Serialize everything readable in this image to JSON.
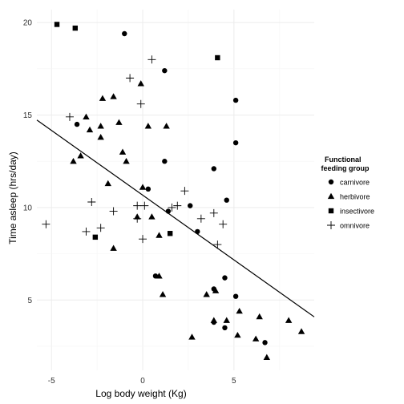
{
  "chart_data": {
    "type": "scatter",
    "xlabel": "Log body weight (Kg)",
    "ylabel": "Time asleep (hrs/day)",
    "xlim": [
      -5.8,
      9.4
    ],
    "ylim": [
      1.2,
      20.7
    ],
    "x_ticks": [
      -5,
      0,
      5
    ],
    "y_ticks": [
      5,
      10,
      15,
      20
    ],
    "x_tick_labels": [
      "-5",
      "0",
      "5"
    ],
    "y_tick_labels": [
      "5",
      "10",
      "15",
      "20"
    ],
    "grid": true,
    "legend": {
      "title_line1": "Functional",
      "title_line2": " feeding group",
      "placement": "right"
    },
    "series": [
      {
        "name": "carnivore",
        "marker": "circle",
        "points": [
          [
            -1.0,
            19.4
          ],
          [
            1.2,
            17.4
          ],
          [
            5.1,
            15.8
          ],
          [
            -3.6,
            14.5
          ],
          [
            5.1,
            13.5
          ],
          [
            1.2,
            12.5
          ],
          [
            3.9,
            12.1
          ],
          [
            0.3,
            11.0
          ],
          [
            4.6,
            10.4
          ],
          [
            2.6,
            10.1
          ],
          [
            1.4,
            9.8
          ],
          [
            3.0,
            8.7
          ],
          [
            0.7,
            6.3
          ],
          [
            4.5,
            6.2
          ],
          [
            3.9,
            5.6
          ],
          [
            5.1,
            5.2
          ],
          [
            3.9,
            3.8
          ],
          [
            4.5,
            3.5
          ],
          [
            6.7,
            2.7
          ]
        ]
      },
      {
        "name": "herbivore",
        "marker": "triangle",
        "points": [
          [
            -2.2,
            15.9
          ],
          [
            -1.6,
            16.0
          ],
          [
            -0.1,
            16.7
          ],
          [
            -3.1,
            14.9
          ],
          [
            -2.9,
            14.2
          ],
          [
            -2.3,
            14.4
          ],
          [
            -1.3,
            14.6
          ],
          [
            0.3,
            14.4
          ],
          [
            1.3,
            14.4
          ],
          [
            -2.3,
            13.8
          ],
          [
            -1.1,
            13.0
          ],
          [
            -3.4,
            12.8
          ],
          [
            -3.8,
            12.5
          ],
          [
            -0.9,
            12.5
          ],
          [
            -1.9,
            11.3
          ],
          [
            0.0,
            11.1
          ],
          [
            -0.3,
            9.5
          ],
          [
            0.5,
            9.5
          ],
          [
            0.9,
            8.5
          ],
          [
            -1.6,
            7.8
          ],
          [
            0.9,
            6.3
          ],
          [
            1.1,
            5.3
          ],
          [
            3.5,
            5.3
          ],
          [
            4.0,
            5.5
          ],
          [
            5.3,
            4.4
          ],
          [
            8.0,
            3.9
          ],
          [
            6.4,
            4.1
          ],
          [
            3.9,
            3.9
          ],
          [
            4.6,
            3.9
          ],
          [
            8.7,
            3.3
          ],
          [
            2.7,
            3.0
          ],
          [
            5.2,
            3.1
          ],
          [
            6.2,
            2.9
          ],
          [
            6.8,
            1.9
          ]
        ]
      },
      {
        "name": "insectivore",
        "marker": "square",
        "points": [
          [
            -4.7,
            19.9
          ],
          [
            -3.7,
            19.7
          ],
          [
            4.1,
            18.1
          ],
          [
            -2.6,
            8.4
          ],
          [
            1.5,
            8.6
          ]
        ]
      },
      {
        "name": "omnivore",
        "marker": "plus",
        "points": [
          [
            0.5,
            18.0
          ],
          [
            -0.7,
            17.0
          ],
          [
            -0.1,
            15.6
          ],
          [
            -4.0,
            14.9
          ],
          [
            2.3,
            10.9
          ],
          [
            0.1,
            10.1
          ],
          [
            -2.8,
            10.3
          ],
          [
            -0.3,
            10.1
          ],
          [
            1.6,
            10.0
          ],
          [
            1.9,
            10.1
          ],
          [
            -1.6,
            9.8
          ],
          [
            3.9,
            9.7
          ],
          [
            3.2,
            9.4
          ],
          [
            -5.3,
            9.1
          ],
          [
            4.4,
            9.1
          ],
          [
            -2.3,
            8.9
          ],
          [
            -3.1,
            8.7
          ],
          [
            -0.3,
            9.4
          ],
          [
            0.0,
            8.3
          ],
          [
            4.1,
            8.0
          ]
        ]
      }
    ],
    "fit_line": {
      "intercept": 10.67,
      "slope": -0.7,
      "x_range": [
        -5.8,
        9.4
      ]
    }
  }
}
